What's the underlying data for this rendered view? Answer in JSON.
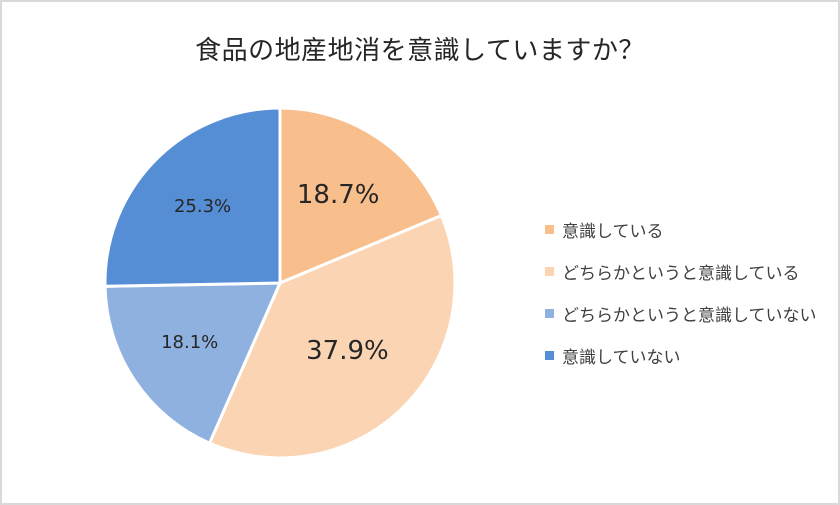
{
  "chart_data": {
    "type": "pie",
    "title": "食品の地産地消を意識していますか？",
    "categories": [
      "意識している",
      "どちらかというと意識している",
      "どちらかというと意識していない",
      "意識していない"
    ],
    "values": [
      18.7,
      37.9,
      18.1,
      25.3
    ],
    "labels": [
      "18.7%",
      "37.9%",
      "18.1%",
      "25.3%"
    ],
    "colors": [
      "#F8BE8C",
      "#FBD5B3",
      "#8EB1E0",
      "#558ED5"
    ],
    "start_angle": "12 o'clock",
    "direction": "clockwise",
    "legend_position": "right",
    "unit": "%"
  },
  "title": "食品の地産地消を意識していますか？",
  "legend": {
    "items": [
      {
        "label": "意識している",
        "color": "#F8BE8C"
      },
      {
        "label": "どちらかというと意識している",
        "color": "#FBD5B3"
      },
      {
        "label": "どちらかというと意識していない",
        "color": "#8EB1E0"
      },
      {
        "label": "意識していない",
        "color": "#558ED5"
      }
    ]
  }
}
